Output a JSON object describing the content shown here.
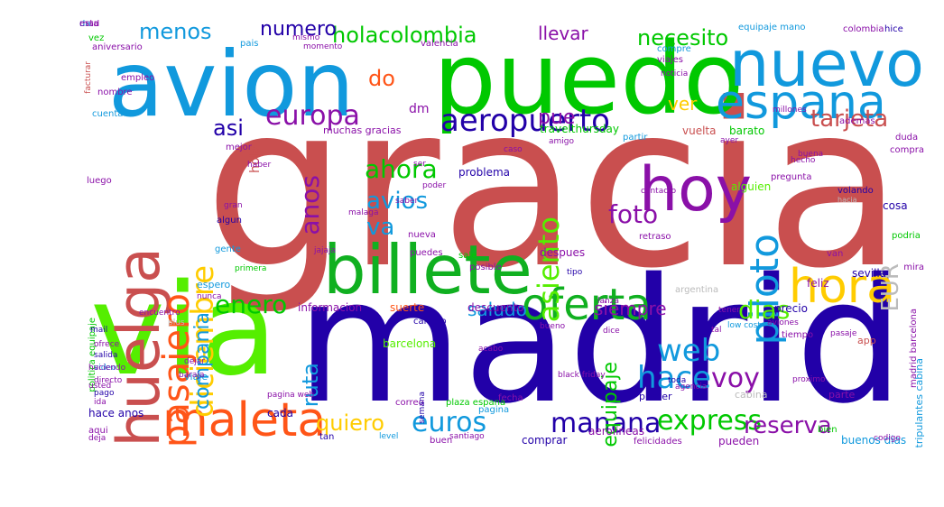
{
  "colors": {
    "red": "#c94f4f",
    "navy": "#2200a8",
    "green": "#00c800",
    "lime": "#55ee00",
    "blue": "#1199dd",
    "purple": "#8a10a8",
    "orange": "#ff5518",
    "yellow": "#ffcc00",
    "darkgreen": "#10b020",
    "grey": "#bbbbbb"
  },
  "words": [
    {
      "text": "gracia",
      "color": "red"
    },
    {
      "text": "madrid",
      "color": "navy"
    },
    {
      "text": "via",
      "color": "lime"
    },
    {
      "text": "puedo",
      "color": "green"
    },
    {
      "text": "avion",
      "color": "blue"
    },
    {
      "text": "billete",
      "color": "darkgreen"
    },
    {
      "text": "huelga",
      "color": "red"
    },
    {
      "text": "nuevo",
      "color": "blue"
    },
    {
      "text": "espana",
      "color": "blue"
    },
    {
      "text": "hoy",
      "color": "purple"
    },
    {
      "text": "maleta",
      "color": "orange"
    },
    {
      "text": "oferta",
      "color": "darkgreen"
    },
    {
      "text": "hora",
      "color": "yellow"
    },
    {
      "text": "pasajero",
      "color": "orange"
    },
    {
      "text": "diciembre",
      "color": "yellow"
    },
    {
      "text": "piloto",
      "color": "blue"
    },
    {
      "text": "aeropuerto",
      "color": "navy"
    },
    {
      "text": "europa",
      "color": "purple"
    },
    {
      "text": "anos",
      "color": "purple"
    },
    {
      "text": "asiento",
      "color": "lime"
    },
    {
      "text": "tarjeta",
      "color": "red"
    },
    {
      "text": "ahora",
      "color": "green"
    },
    {
      "text": "avios",
      "color": "blue"
    },
    {
      "text": "foto",
      "color": "purple"
    },
    {
      "text": "va",
      "color": "blue"
    },
    {
      "text": "web",
      "color": "blue"
    },
    {
      "text": "hace",
      "color": "blue"
    },
    {
      "text": "voy",
      "color": "purple"
    },
    {
      "text": "euros",
      "color": "blue"
    },
    {
      "text": "manana",
      "color": "navy"
    },
    {
      "text": "express",
      "color": "green"
    },
    {
      "text": "reserva",
      "color": "purple"
    },
    {
      "text": "quiero",
      "color": "yellow"
    },
    {
      "text": "ruta",
      "color": "blue"
    },
    {
      "text": "equipaje",
      "color": "green"
    },
    {
      "text": "dias",
      "color": "lime"
    },
    {
      "text": "enero",
      "color": "green"
    },
    {
      "text": "compania",
      "color": "blue"
    },
    {
      "text": "holacolombia",
      "color": "green"
    },
    {
      "text": "llevar",
      "color": "purple"
    },
    {
      "text": "necesito",
      "color": "green"
    },
    {
      "text": "menos",
      "color": "blue"
    },
    {
      "text": "numero",
      "color": "navy"
    },
    {
      "text": "pue",
      "color": "purple"
    },
    {
      "text": "asi",
      "color": "navy"
    },
    {
      "text": "do",
      "color": "orange"
    },
    {
      "text": "ver",
      "color": "yellow"
    },
    {
      "text": "saludo",
      "color": "blue"
    },
    {
      "text": "siempre",
      "color": "purple"
    },
    {
      "text": "EUR",
      "color": "grey"
    },
    {
      "text": "hola",
      "color": "red"
    },
    {
      "text": "dm",
      "color": "purple"
    },
    {
      "text": "muchas gracias",
      "color": "purple"
    },
    {
      "text": "travelthursday",
      "color": "green"
    },
    {
      "text": "vuelta",
      "color": "red"
    },
    {
      "text": "barato",
      "color": "green"
    },
    {
      "text": "problema",
      "color": "navy"
    },
    {
      "text": "alguien",
      "color": "lime"
    },
    {
      "text": "cosa",
      "color": "navy"
    },
    {
      "text": "pregunta",
      "color": "purple"
    },
    {
      "text": "hacia",
      "color": "grey"
    },
    {
      "text": "despues",
      "color": "purple"
    },
    {
      "text": "sevilla",
      "color": "navy"
    },
    {
      "text": "informacion",
      "color": "purple"
    },
    {
      "text": "suerte",
      "color": "orange"
    },
    {
      "text": "descuento",
      "color": "purple"
    },
    {
      "text": "precio",
      "color": "navy"
    },
    {
      "text": "tiempo",
      "color": "purple"
    },
    {
      "text": "feliz",
      "color": "purple"
    },
    {
      "text": "barcelona",
      "color": "lime"
    },
    {
      "text": "viaje",
      "color": "blue"
    },
    {
      "text": "hace anos",
      "color": "navy"
    },
    {
      "text": "cada",
      "color": "navy"
    },
    {
      "text": "aqui",
      "color": "purple"
    },
    {
      "text": "comprar",
      "color": "navy"
    },
    {
      "text": "aerolineas",
      "color": "purple"
    },
    {
      "text": "buenos dias",
      "color": "blue"
    },
    {
      "text": "bien",
      "color": "green"
    },
    {
      "text": "pueden",
      "color": "purple"
    },
    {
      "text": "nueva",
      "color": "purple"
    },
    {
      "text": "puedes",
      "color": "purple"
    },
    {
      "text": "sale",
      "color": "green"
    },
    {
      "text": "gente",
      "color": "blue"
    },
    {
      "text": "espero",
      "color": "blue"
    },
    {
      "text": "algun",
      "color": "navy"
    },
    {
      "text": "cambio",
      "color": "navy"
    },
    {
      "text": "posible",
      "color": "purple"
    },
    {
      "text": "retraso",
      "color": "purple"
    },
    {
      "text": "podria",
      "color": "green"
    },
    {
      "text": "van",
      "color": "purple"
    },
    {
      "text": "mira",
      "color": "purple"
    },
    {
      "text": "cabina",
      "color": "grey"
    },
    {
      "text": "parte",
      "color": "purple"
    },
    {
      "text": "primer",
      "color": "navy"
    },
    {
      "text": "fecha",
      "color": "purple"
    },
    {
      "text": "pagina",
      "color": "blue"
    },
    {
      "text": "app",
      "color": "red"
    },
    {
      "text": "madrid barcelona",
      "color": "purple"
    },
    {
      "text": "tripulantes cabina",
      "color": "blue"
    },
    {
      "text": "politica equipaje",
      "color": "green"
    },
    {
      "text": "compra",
      "color": "purple"
    },
    {
      "text": "duda",
      "color": "purple"
    },
    {
      "text": "vez",
      "color": "green"
    },
    {
      "text": "aniversario",
      "color": "purple"
    },
    {
      "text": "mismo",
      "color": "purple"
    },
    {
      "text": "momento",
      "color": "purple"
    },
    {
      "text": "valencia",
      "color": "purple"
    },
    {
      "text": "pais",
      "color": "blue"
    },
    {
      "text": "equipaje mano",
      "color": "blue"
    },
    {
      "text": "colombia",
      "color": "purple"
    },
    {
      "text": "hice",
      "color": "navy"
    },
    {
      "text": "compre",
      "color": "blue"
    },
    {
      "text": "viajes",
      "color": "purple"
    },
    {
      "text": "facturar",
      "color": "red"
    },
    {
      "text": "cuenta",
      "color": "blue"
    },
    {
      "text": "nombre",
      "color": "purple"
    },
    {
      "text": "empleo",
      "color": "purple"
    },
    {
      "text": "noticia",
      "color": "purple"
    },
    {
      "text": "millones",
      "color": "purple"
    },
    {
      "text": "partir",
      "color": "blue"
    },
    {
      "text": "ademas",
      "color": "purple"
    },
    {
      "text": "volando",
      "color": "navy"
    },
    {
      "text": "mejor",
      "color": "purple"
    },
    {
      "text": "luego",
      "color": "purple"
    },
    {
      "text": "tipo",
      "color": "navy"
    },
    {
      "text": "argentina",
      "color": "grey"
    },
    {
      "text": "bueno",
      "color": "purple"
    },
    {
      "text": "mail",
      "color": "navy"
    },
    {
      "text": "encuentro",
      "color": "purple"
    },
    {
      "text": "plus",
      "color": "grey"
    },
    {
      "text": "dice",
      "color": "purple"
    },
    {
      "text": "ofrece",
      "color": "purple"
    },
    {
      "text": "salida",
      "color": "navy"
    },
    {
      "text": "video",
      "color": "blue"
    },
    {
      "text": "directo",
      "color": "purple"
    },
    {
      "text": "pago",
      "color": "navy"
    },
    {
      "text": "ida",
      "color": "purple"
    },
    {
      "text": "deja",
      "color": "purple"
    },
    {
      "text": "tan",
      "color": "navy"
    },
    {
      "text": "buen",
      "color": "purple"
    },
    {
      "text": "felicidades",
      "color": "purple"
    },
    {
      "text": "plaza espana",
      "color": "green"
    },
    {
      "text": "acabo",
      "color": "purple"
    },
    {
      "text": "lanza",
      "color": "purple"
    },
    {
      "text": "correo",
      "color": "purple"
    },
    {
      "text": "codigo",
      "color": "purple"
    },
    {
      "text": "semana",
      "color": "navy"
    },
    {
      "text": "black friday",
      "color": "purple"
    },
    {
      "text": "toda",
      "color": "navy"
    },
    {
      "text": "ser",
      "color": "purple"
    },
    {
      "text": "gran",
      "color": "purple"
    },
    {
      "text": "primera",
      "color": "green"
    },
    {
      "text": "malaga",
      "color": "purple"
    },
    {
      "text": "poder",
      "color": "purple"
    },
    {
      "text": "caso",
      "color": "purple"
    },
    {
      "text": "amigo",
      "color": "purple"
    },
    {
      "text": "ayer",
      "color": "purple"
    },
    {
      "text": "buena",
      "color": "purple"
    },
    {
      "text": "baraja",
      "color": "purple"
    },
    {
      "text": "dejar",
      "color": "purple"
    },
    {
      "text": "saber",
      "color": "purple"
    },
    {
      "text": "haber",
      "color": "purple"
    },
    {
      "text": "contacto",
      "color": "purple"
    },
    {
      "text": "hecho",
      "color": "purple"
    },
    {
      "text": "santiago",
      "color": "purple"
    },
    {
      "text": "pagina web",
      "color": "purple"
    },
    {
      "text": "jajaja",
      "color": "purple"
    },
    {
      "text": "usted",
      "color": "purple"
    },
    {
      "text": "haciendo",
      "color": "purple"
    },
    {
      "text": "level",
      "color": "blue"
    },
    {
      "text": "low cost",
      "color": "blue"
    },
    {
      "text": "aviones",
      "color": "purple"
    },
    {
      "text": "pasaje",
      "color": "purple"
    },
    {
      "text": "tener",
      "color": "purple"
    },
    {
      "text": "nunca",
      "color": "purple"
    },
    {
      "text": "proximo",
      "color": "purple"
    },
    {
      "text": "agencia",
      "color": "purple"
    },
    {
      "text": "tal",
      "color": "purple"
    },
    {
      "text": "mad",
      "color": "purple"
    },
    {
      "text": "da",
      "color": "blue"
    },
    {
      "text": "esta",
      "color": "purple"
    }
  ]
}
